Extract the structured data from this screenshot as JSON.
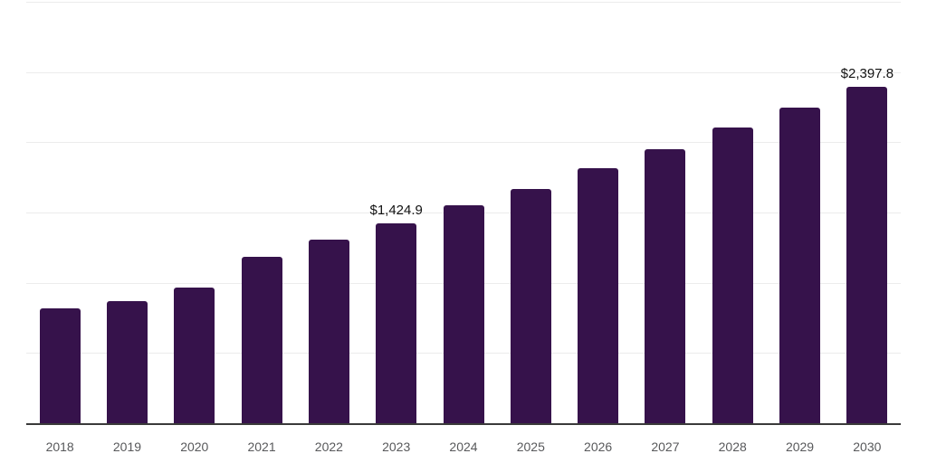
{
  "chart_data": {
    "type": "bar",
    "title": "",
    "xlabel": "",
    "ylabel": "",
    "categories": [
      "2018",
      "2019",
      "2020",
      "2021",
      "2022",
      "2023",
      "2024",
      "2025",
      "2026",
      "2027",
      "2028",
      "2029",
      "2030"
    ],
    "values": [
      820,
      870,
      965,
      1185,
      1305,
      1424.9,
      1550,
      1670,
      1815,
      1950,
      2105,
      2250,
      2397.8
    ],
    "data_labels": [
      {
        "category": "2023",
        "text": "$1,424.9"
      },
      {
        "category": "2030",
        "text": "$2,397.8"
      }
    ],
    "ylim": [
      0,
      3000
    ],
    "gridline_step": 500,
    "grid": "horizontal-only",
    "legend": "none",
    "y_tick_labels_visible": false,
    "colors": {
      "bar": "#36124b",
      "gridline": "#ececec",
      "axis_line": "#3a3a3a",
      "x_tick_label": "#58595b",
      "data_label": "#121212",
      "background": "#ffffff"
    }
  }
}
